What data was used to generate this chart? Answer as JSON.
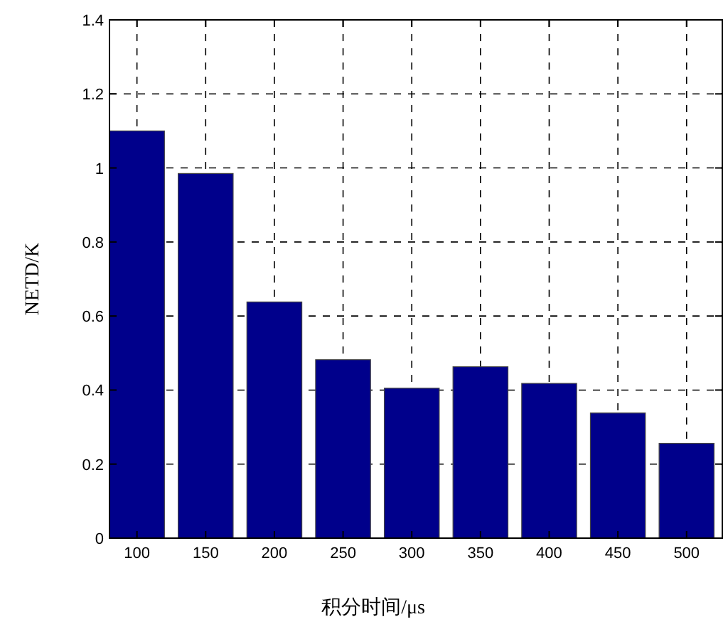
{
  "chart_data": {
    "type": "bar",
    "xlabel": "积分时间/μs",
    "ylabel": "NETD/K",
    "x": [
      100,
      150,
      200,
      250,
      300,
      350,
      400,
      450,
      500
    ],
    "values": [
      1.1,
      0.985,
      0.638,
      0.482,
      0.405,
      0.463,
      0.418,
      0.338,
      0.256
    ],
    "color": "#00008b",
    "xlim": [
      80,
      526
    ],
    "xticks": [
      100,
      150,
      200,
      250,
      300,
      350,
      400,
      450,
      500
    ],
    "ylim": [
      0,
      1.4
    ],
    "yticks": [
      0,
      0.2,
      0.4,
      0.6,
      0.8,
      1,
      1.2,
      1.4
    ],
    "grid": true
  }
}
